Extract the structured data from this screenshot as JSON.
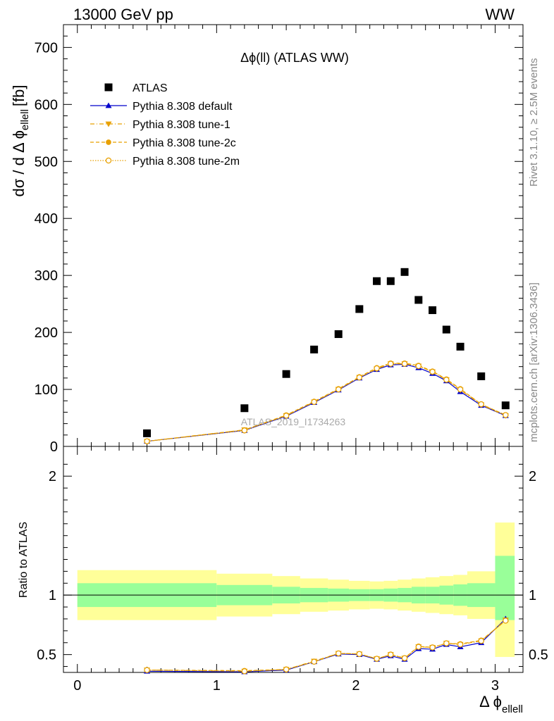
{
  "header": {
    "left": "13000 GeV pp",
    "right": "WW"
  },
  "side_labels": {
    "rivet": "Rivet 3.1.10, ≥ 2.5M events",
    "mcplots": "mcplots.cern.ch [arXiv:1306.3436]"
  },
  "colors": {
    "atlas": "#000000",
    "default": "#0000cc",
    "tune": "#e8a000",
    "band_inner": "#99ff99",
    "band_outer": "#ffff99"
  },
  "chart_data": [
    {
      "type": "scatter",
      "title": "Δϕ(ll) (ATLAS WW)",
      "watermark": "ATLAS_2019_I1734263",
      "ylabel": "dσ / d Δ ϕ",
      "ylabel_sub": "ellell",
      "ylabel_unit": "[fb]",
      "xlim": [
        -0.1,
        3.2
      ],
      "ylim": [
        0,
        740
      ],
      "yticks": [
        0,
        100,
        200,
        300,
        400,
        500,
        600,
        700
      ],
      "legend_position": "top-left",
      "x": [
        0.5,
        1.2,
        1.5,
        1.7,
        1.875,
        2.025,
        2.15,
        2.25,
        2.35,
        2.45,
        2.55,
        2.65,
        2.75,
        2.9,
        3.075
      ],
      "series": [
        {
          "name": "ATLAS",
          "marker": "square",
          "values": [
            23,
            67,
            127,
            170,
            197,
            241,
            290,
            290,
            306,
            257,
            239,
            205,
            175,
            123,
            72
          ]
        },
        {
          "name": "Pythia 8.308 default",
          "marker": "triangle-up",
          "values": [
            9,
            28,
            53,
            77,
            99,
            120,
            135,
            143,
            144,
            138,
            128,
            115,
            96,
            72,
            54
          ]
        },
        {
          "name": "Pythia 8.308 tune-1",
          "marker": "triangle-down",
          "values": [
            9,
            29,
            54,
            78,
            100,
            121,
            136,
            145,
            145,
            141,
            131,
            117,
            99,
            73,
            54
          ]
        },
        {
          "name": "Pythia 8.308 tune-2c",
          "marker": "circle",
          "values": [
            9,
            29,
            55,
            79,
            101,
            122,
            138,
            146,
            146,
            142,
            132,
            118,
            101,
            74,
            55
          ]
        },
        {
          "name": "Pythia 8.308 tune-2m",
          "marker": "circle-open",
          "values": [
            9,
            28,
            54,
            78,
            100,
            121,
            137,
            145,
            145,
            141,
            131,
            117,
            100,
            74,
            55
          ]
        }
      ]
    },
    {
      "type": "line",
      "ylabel": "Ratio to ATLAS",
      "xlabel": "Δ ϕ",
      "xlabel_sub": "ellell",
      "xlim": [
        -0.1,
        3.2
      ],
      "ylim": [
        0.35,
        2.25
      ],
      "xticks": [
        0,
        1,
        2,
        3
      ],
      "yticks": [
        0.5,
        1,
        2
      ],
      "bins": [
        {
          "lo": 0.0,
          "hi": 1.0,
          "inner": [
            0.9,
            1.1
          ],
          "outer": [
            0.79,
            1.21
          ]
        },
        {
          "lo": 1.0,
          "hi": 1.4,
          "inner": [
            0.915,
            1.085
          ],
          "outer": [
            0.82,
            1.18
          ]
        },
        {
          "lo": 1.4,
          "hi": 1.6,
          "inner": [
            0.93,
            1.07
          ],
          "outer": [
            0.84,
            1.16
          ]
        },
        {
          "lo": 1.6,
          "hi": 1.8,
          "inner": [
            0.94,
            1.06
          ],
          "outer": [
            0.86,
            1.14
          ]
        },
        {
          "lo": 1.8,
          "hi": 1.95,
          "inner": [
            0.945,
            1.055
          ],
          "outer": [
            0.87,
            1.13
          ]
        },
        {
          "lo": 1.95,
          "hi": 2.1,
          "inner": [
            0.95,
            1.05
          ],
          "outer": [
            0.88,
            1.12
          ]
        },
        {
          "lo": 2.1,
          "hi": 2.2,
          "inner": [
            0.95,
            1.05
          ],
          "outer": [
            0.885,
            1.115
          ]
        },
        {
          "lo": 2.2,
          "hi": 2.3,
          "inner": [
            0.945,
            1.055
          ],
          "outer": [
            0.88,
            1.12
          ]
        },
        {
          "lo": 2.3,
          "hi": 2.4,
          "inner": [
            0.94,
            1.06
          ],
          "outer": [
            0.87,
            1.13
          ]
        },
        {
          "lo": 2.4,
          "hi": 2.5,
          "inner": [
            0.93,
            1.07
          ],
          "outer": [
            0.86,
            1.14
          ]
        },
        {
          "lo": 2.5,
          "hi": 2.6,
          "inner": [
            0.93,
            1.07
          ],
          "outer": [
            0.85,
            1.15
          ]
        },
        {
          "lo": 2.6,
          "hi": 2.7,
          "inner": [
            0.92,
            1.08
          ],
          "outer": [
            0.84,
            1.16
          ]
        },
        {
          "lo": 2.7,
          "hi": 2.8,
          "inner": [
            0.91,
            1.09
          ],
          "outer": [
            0.83,
            1.17
          ]
        },
        {
          "lo": 2.8,
          "hi": 3.0,
          "inner": [
            0.9,
            1.1
          ],
          "outer": [
            0.8,
            1.2
          ]
        },
        {
          "lo": 3.0,
          "hi": 3.14,
          "inner": [
            0.79,
            1.33
          ],
          "outer": [
            0.48,
            1.61
          ]
        }
      ],
      "x": [
        0.5,
        1.2,
        1.5,
        1.7,
        1.875,
        2.025,
        2.15,
        2.25,
        2.35,
        2.45,
        2.55,
        2.65,
        2.75,
        2.9,
        3.075
      ],
      "series": [
        {
          "name": "Pythia 8.308 default",
          "marker": "triangle-up",
          "values": [
            0.36,
            0.355,
            0.37,
            0.44,
            0.505,
            0.5,
            0.46,
            0.49,
            0.46,
            0.55,
            0.545,
            0.585,
            0.565,
            0.6,
            0.8
          ]
        },
        {
          "name": "Pythia 8.308 tune-1",
          "marker": "triangle-down",
          "values": [
            0.37,
            0.36,
            0.375,
            0.445,
            0.51,
            0.505,
            0.465,
            0.5,
            0.47,
            0.565,
            0.56,
            0.595,
            0.585,
            0.615,
            0.79
          ]
        },
        {
          "name": "Pythia 8.308 tune-2c",
          "marker": "circle",
          "values": [
            0.37,
            0.365,
            0.375,
            0.44,
            0.51,
            0.505,
            0.465,
            0.5,
            0.47,
            0.57,
            0.56,
            0.595,
            0.59,
            0.62,
            0.785
          ]
        },
        {
          "name": "Pythia 8.308 tune-2m",
          "marker": "circle-open",
          "values": [
            0.37,
            0.36,
            0.375,
            0.44,
            0.51,
            0.505,
            0.465,
            0.5,
            0.47,
            0.565,
            0.56,
            0.595,
            0.585,
            0.615,
            0.785
          ]
        }
      ]
    }
  ]
}
